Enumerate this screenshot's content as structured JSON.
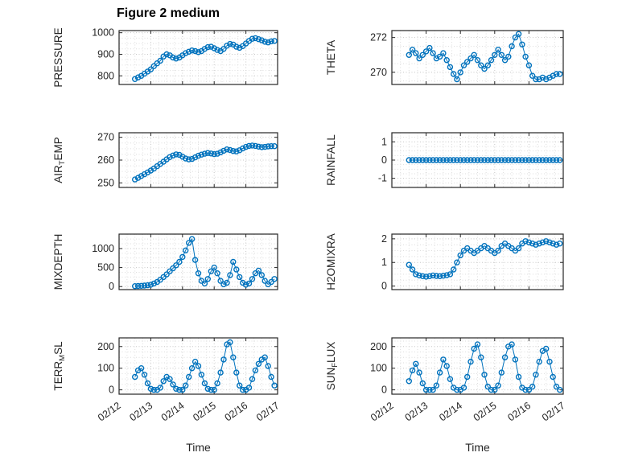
{
  "figure": {
    "title": "Figure 2 medium",
    "background": "#ffffff",
    "marker_color": "#0072BD",
    "axes_color": "#262626",
    "grid_major_color": "#c8c8c8",
    "grid_minor_color": "#dedede"
  },
  "chart_data": {
    "type": "scatter",
    "marker": "o",
    "series_color": "#0072BD",
    "grid": "on",
    "xlabel": "Time",
    "xlim": [
      0,
      5
    ],
    "x_ticks": {
      "positions": [
        0,
        1,
        2,
        3,
        4,
        5
      ],
      "labels": [
        "02/12",
        "02/13",
        "02/14",
        "02/15",
        "02/16",
        "02/17"
      ]
    },
    "x_days": [
      0.5,
      0.6,
      0.7,
      0.8,
      0.9,
      1.0,
      1.1,
      1.2,
      1.3,
      1.4,
      1.5,
      1.6,
      1.7,
      1.8,
      1.9,
      2.0,
      2.1,
      2.2,
      2.3,
      2.4,
      2.5,
      2.6,
      2.7,
      2.8,
      2.9,
      3.0,
      3.1,
      3.2,
      3.3,
      3.4,
      3.5,
      3.6,
      3.7,
      3.8,
      3.9,
      4.0,
      4.1,
      4.2,
      4.3,
      4.4,
      4.5,
      4.6,
      4.7,
      4.8,
      4.9
    ],
    "subplots": [
      {
        "name": "PRESSURE",
        "label_parts": [
          {
            "t": "PRESSURE"
          }
        ],
        "yticks": [
          800,
          900,
          1000
        ],
        "ylim": [
          760,
          1010
        ],
        "values": [
          785,
          793,
          800,
          810,
          820,
          830,
          845,
          858,
          870,
          890,
          900,
          895,
          885,
          880,
          885,
          895,
          905,
          912,
          918,
          915,
          910,
          915,
          925,
          933,
          935,
          928,
          920,
          915,
          925,
          940,
          948,
          945,
          935,
          930,
          938,
          950,
          962,
          972,
          975,
          970,
          965,
          958,
          955,
          960,
          962
        ]
      },
      {
        "name": "THETA",
        "label_parts": [
          {
            "t": "THETA"
          }
        ],
        "yticks": [
          270,
          272
        ],
        "ylim": [
          269.3,
          272.4
        ],
        "values": [
          271.0,
          271.3,
          271.1,
          270.8,
          271.0,
          271.2,
          271.4,
          271.1,
          270.8,
          270.9,
          271.1,
          270.7,
          270.3,
          269.9,
          269.6,
          270.0,
          270.4,
          270.6,
          270.8,
          271.0,
          270.7,
          270.4,
          270.2,
          270.4,
          270.7,
          271.0,
          271.3,
          271.0,
          270.7,
          270.9,
          271.5,
          272.0,
          272.2,
          271.6,
          270.9,
          270.4,
          269.8,
          269.6,
          269.6,
          269.7,
          269.6,
          269.7,
          269.8,
          269.9,
          269.9
        ]
      },
      {
        "name": "AIR_TEMP",
        "label_parts": [
          {
            "t": "AIR"
          },
          {
            "t": "T",
            "sub": true
          },
          {
            "t": "EMP"
          }
        ],
        "yticks": [
          250,
          260,
          270
        ],
        "ylim": [
          248,
          272
        ],
        "values": [
          251.5,
          252.2,
          253.0,
          253.8,
          254.6,
          255.4,
          256.3,
          257.3,
          258.3,
          259.3,
          260.3,
          261.3,
          262.0,
          262.5,
          262.3,
          261.5,
          260.7,
          260.3,
          260.5,
          261.2,
          261.9,
          262.4,
          262.8,
          263.1,
          262.9,
          262.6,
          262.8,
          263.4,
          264.1,
          264.7,
          264.4,
          264.0,
          263.8,
          264.3,
          265.1,
          265.8,
          266.2,
          266.4,
          266.2,
          265.9,
          265.7,
          265.8,
          266.0,
          266.1,
          266.1
        ]
      },
      {
        "name": "RAINFALL",
        "label_parts": [
          {
            "t": "RAINFALL"
          }
        ],
        "yticks": [
          -1,
          0,
          1
        ],
        "ylim": [
          -1.5,
          1.5
        ],
        "values": [
          0,
          0,
          0,
          0,
          0,
          0,
          0,
          0,
          0,
          0,
          0,
          0,
          0,
          0,
          0,
          0,
          0,
          0,
          0,
          0,
          0,
          0,
          0,
          0,
          0,
          0,
          0,
          0,
          0,
          0,
          0,
          0,
          0,
          0,
          0,
          0,
          0,
          0,
          0,
          0,
          0,
          0,
          0,
          0,
          0
        ]
      },
      {
        "name": "MIXDEPTH",
        "label_parts": [
          {
            "t": "MIXDEPTH"
          }
        ],
        "yticks": [
          0,
          500,
          1000
        ],
        "ylim": [
          -80,
          1380
        ],
        "values": [
          10,
          15,
          20,
          25,
          35,
          50,
          80,
          120,
          180,
          250,
          320,
          400,
          480,
          560,
          650,
          780,
          950,
          1150,
          1250,
          700,
          350,
          150,
          80,
          200,
          400,
          500,
          350,
          150,
          60,
          100,
          300,
          650,
          450,
          250,
          100,
          50,
          80,
          200,
          350,
          420,
          300,
          150,
          60,
          120,
          200
        ]
      },
      {
        "name": "H2OMIXRA",
        "label_parts": [
          {
            "t": "H2OMIXRA"
          }
        ],
        "yticks": [
          0,
          1,
          2
        ],
        "ylim": [
          -0.15,
          2.2
        ],
        "values": [
          0.9,
          0.7,
          0.5,
          0.45,
          0.42,
          0.4,
          0.42,
          0.45,
          0.43,
          0.42,
          0.44,
          0.46,
          0.5,
          0.7,
          1.0,
          1.3,
          1.5,
          1.6,
          1.5,
          1.4,
          1.5,
          1.6,
          1.7,
          1.6,
          1.5,
          1.4,
          1.5,
          1.7,
          1.8,
          1.7,
          1.6,
          1.5,
          1.6,
          1.8,
          1.9,
          1.85,
          1.8,
          1.75,
          1.8,
          1.85,
          1.9,
          1.85,
          1.8,
          1.75,
          1.8
        ]
      },
      {
        "name": "TERR_MSL",
        "label_parts": [
          {
            "t": "TERR"
          },
          {
            "t": "M",
            "sub": true
          },
          {
            "t": "SL"
          }
        ],
        "yticks": [
          0,
          100,
          200
        ],
        "ylim": [
          -20,
          240
        ],
        "values": [
          60,
          90,
          100,
          70,
          30,
          5,
          0,
          0,
          10,
          40,
          60,
          50,
          25,
          5,
          0,
          0,
          20,
          60,
          100,
          130,
          110,
          70,
          30,
          5,
          0,
          0,
          30,
          80,
          140,
          210,
          220,
          150,
          80,
          20,
          0,
          0,
          10,
          50,
          90,
          120,
          140,
          150,
          110,
          60,
          20
        ]
      },
      {
        "name": "SUN_FLUX",
        "label_parts": [
          {
            "t": "SUN"
          },
          {
            "t": "F",
            "sub": true
          },
          {
            "t": "LUX"
          }
        ],
        "yticks": [
          0,
          100,
          200
        ],
        "ylim": [
          -20,
          240
        ],
        "values": [
          40,
          90,
          120,
          80,
          30,
          0,
          0,
          0,
          20,
          80,
          140,
          110,
          50,
          10,
          0,
          0,
          10,
          60,
          130,
          190,
          210,
          150,
          70,
          15,
          0,
          0,
          20,
          80,
          150,
          200,
          210,
          140,
          60,
          10,
          0,
          0,
          15,
          70,
          130,
          180,
          190,
          130,
          60,
          15,
          0
        ]
      }
    ]
  }
}
